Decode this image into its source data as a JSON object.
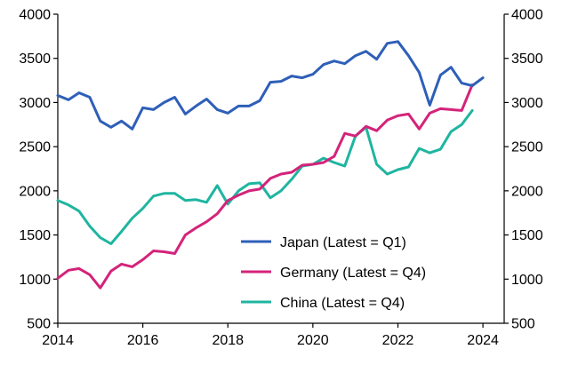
{
  "chart_data": {
    "type": "line",
    "title": "",
    "xlabel": "",
    "ylabel": "",
    "xlim": [
      2014,
      2024.5
    ],
    "ylim": [
      500,
      4000
    ],
    "x_ticks": [
      "2014",
      "2016",
      "2018",
      "2020",
      "2022",
      "2024"
    ],
    "y_ticks_left": [
      "500",
      "1000",
      "1500",
      "2000",
      "2500",
      "3000",
      "3500",
      "4000"
    ],
    "y_ticks_right": [
      "500",
      "1000",
      "1500",
      "2000",
      "2500",
      "3000",
      "3500",
      "4000"
    ],
    "grid": false,
    "legend_position": "lower-right",
    "series": [
      {
        "name": "Japan (Latest = Q1)",
        "color": "#2e5fb8",
        "x": [
          2014.0,
          2014.25,
          2014.5,
          2014.75,
          2015.0,
          2015.25,
          2015.5,
          2015.75,
          2016.0,
          2016.25,
          2016.5,
          2016.75,
          2017.0,
          2017.25,
          2017.5,
          2017.75,
          2018.0,
          2018.25,
          2018.5,
          2018.75,
          2019.0,
          2019.25,
          2019.5,
          2019.75,
          2020.0,
          2020.25,
          2020.5,
          2020.75,
          2021.0,
          2021.25,
          2021.5,
          2021.75,
          2022.0,
          2022.25,
          2022.5,
          2022.75,
          2023.0,
          2023.25,
          2023.5,
          2023.75,
          2024.0
        ],
        "values": [
          3080,
          3030,
          3110,
          3060,
          2790,
          2720,
          2790,
          2700,
          2940,
          2920,
          3000,
          3060,
          2870,
          2960,
          3040,
          2920,
          2880,
          2960,
          2960,
          3020,
          3230,
          3240,
          3300,
          3280,
          3320,
          3430,
          3470,
          3440,
          3530,
          3580,
          3490,
          3670,
          3690,
          3530,
          3340,
          2970,
          3310,
          3400,
          3220,
          3190,
          3280
        ]
      },
      {
        "name": "Germany (Latest = Q4)",
        "color": "#d4237a",
        "x": [
          2014.0,
          2014.25,
          2014.5,
          2014.75,
          2015.0,
          2015.25,
          2015.5,
          2015.75,
          2016.0,
          2016.25,
          2016.5,
          2016.75,
          2017.0,
          2017.25,
          2017.5,
          2017.75,
          2018.0,
          2018.25,
          2018.5,
          2018.75,
          2019.0,
          2019.25,
          2019.5,
          2019.75,
          2020.0,
          2020.25,
          2020.5,
          2020.75,
          2021.0,
          2021.25,
          2021.5,
          2021.75,
          2022.0,
          2022.25,
          2022.5,
          2022.75,
          2023.0,
          2023.25,
          2023.5,
          2023.75
        ],
        "values": [
          1010,
          1100,
          1120,
          1050,
          900,
          1090,
          1170,
          1140,
          1220,
          1320,
          1310,
          1290,
          1500,
          1580,
          1650,
          1740,
          1890,
          1950,
          2000,
          2020,
          2140,
          2190,
          2210,
          2290,
          2300,
          2320,
          2390,
          2650,
          2620,
          2730,
          2680,
          2800,
          2850,
          2870,
          2700,
          2880,
          2930,
          2920,
          2910,
          3200
        ]
      },
      {
        "name": "China (Latest = Q4)",
        "color": "#1fb5a0",
        "x": [
          2014.0,
          2014.25,
          2014.5,
          2014.75,
          2015.0,
          2015.25,
          2015.5,
          2015.75,
          2016.0,
          2016.25,
          2016.5,
          2016.75,
          2017.0,
          2017.25,
          2017.5,
          2017.75,
          2018.0,
          2018.25,
          2018.5,
          2018.75,
          2019.0,
          2019.25,
          2019.5,
          2019.75,
          2020.0,
          2020.25,
          2020.5,
          2020.75,
          2021.0,
          2021.25,
          2021.5,
          2021.75,
          2022.0,
          2022.25,
          2022.5,
          2022.75,
          2023.0,
          2023.25,
          2023.5,
          2023.75
        ],
        "values": [
          1890,
          1840,
          1770,
          1600,
          1470,
          1400,
          1540,
          1690,
          1800,
          1940,
          1970,
          1970,
          1890,
          1900,
          1870,
          2060,
          1850,
          2000,
          2080,
          2090,
          1920,
          2000,
          2130,
          2280,
          2300,
          2370,
          2320,
          2280,
          2620,
          2720,
          2300,
          2190,
          2240,
          2270,
          2480,
          2430,
          2470,
          2670,
          2750,
          2910
        ]
      }
    ]
  }
}
